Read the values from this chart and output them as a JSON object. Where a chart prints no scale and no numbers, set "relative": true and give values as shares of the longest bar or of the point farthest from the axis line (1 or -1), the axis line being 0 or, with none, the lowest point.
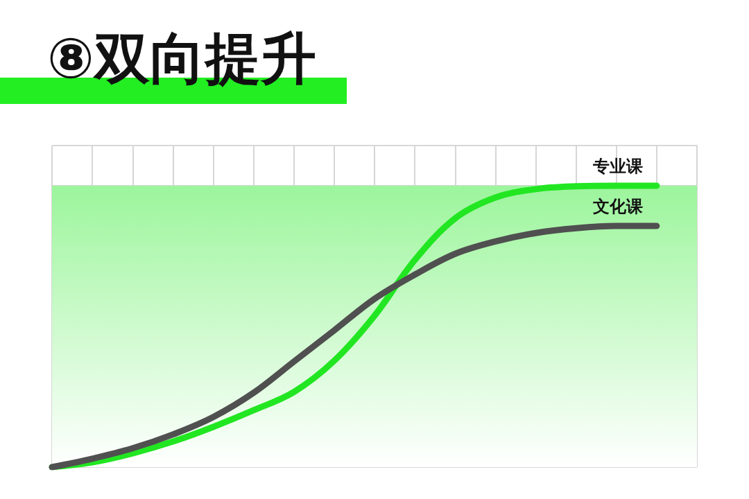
{
  "chart_data": {
    "type": "line",
    "title": "⑧双向提升",
    "relative": true,
    "grid": true,
    "legend": false,
    "marker": "none",
    "line_style": "solid",
    "categories": [
      null,
      null,
      null,
      null,
      null,
      null,
      null,
      null,
      null,
      null,
      null,
      null,
      null,
      null,
      null,
      null,
      null
    ],
    "series": [
      {
        "name": "专业课",
        "color": "#22e622",
        "values": [
          0,
          0.017,
          0.049,
          0.091,
          0.143,
          0.202,
          0.267,
          0.378,
          0.538,
          0.736,
          0.884,
          0.958,
          0.988,
          0.998,
          1,
          1,
          null
        ]
      },
      {
        "name": "文化课",
        "color": "#505050",
        "values": [
          0,
          0.03,
          0.067,
          0.116,
          0.178,
          0.264,
          0.375,
          0.486,
          0.598,
          0.684,
          0.758,
          0.802,
          0.832,
          0.849,
          0.857,
          0.857,
          null
        ]
      }
    ],
    "bands": [
      {
        "axis": "y",
        "from": 0,
        "to": 1,
        "color": "#9cf59c"
      }
    ]
  }
}
